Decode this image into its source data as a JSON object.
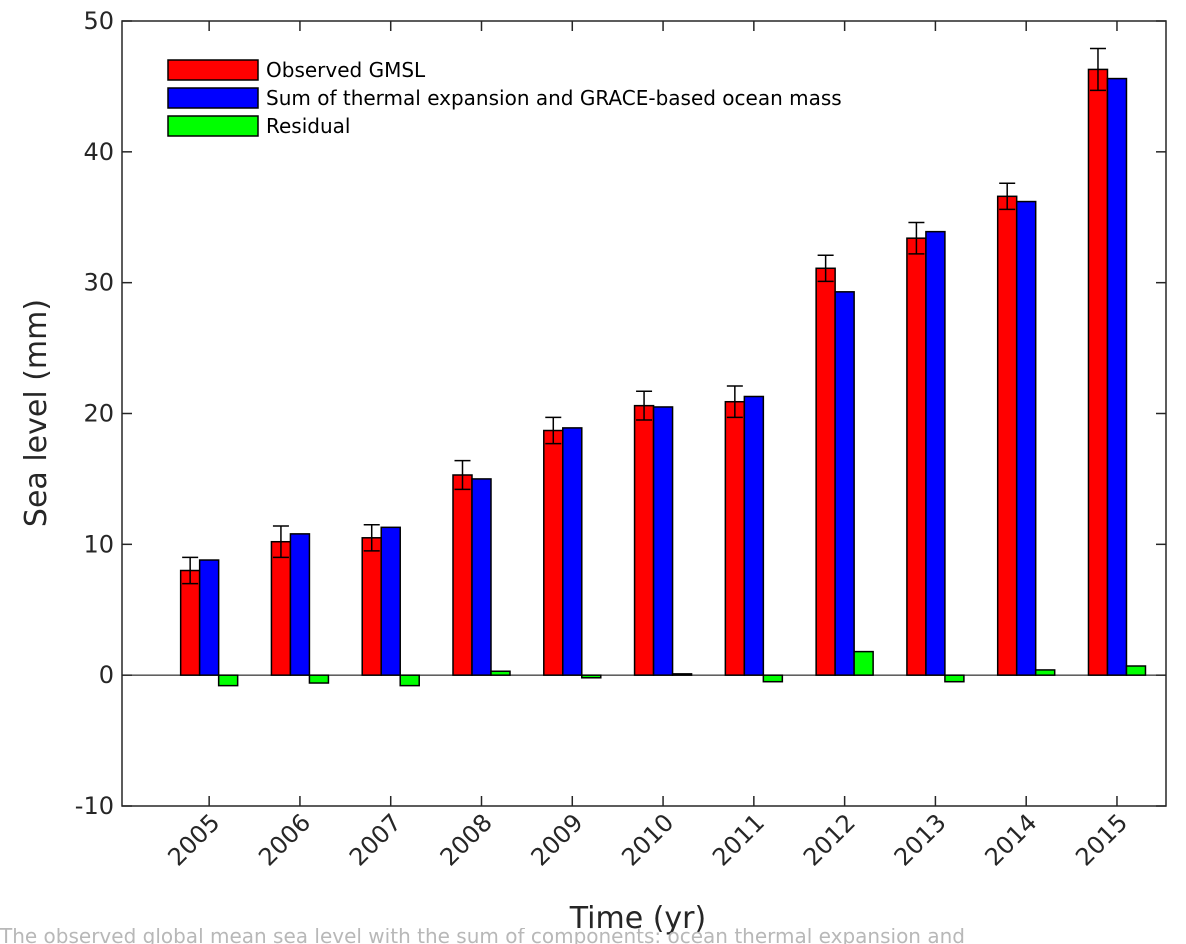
{
  "chart_data": {
    "type": "bar",
    "title": "",
    "xlabel": "Time (yr)",
    "ylabel": "Sea level (mm)",
    "ylim": [
      -10,
      50
    ],
    "yticks": [
      -10,
      0,
      10,
      20,
      30,
      40,
      50
    ],
    "grid": false,
    "legend_position": "top-left",
    "categories": [
      "2005",
      "2006",
      "2007",
      "2008",
      "2009",
      "2010",
      "2011",
      "2012",
      "2013",
      "2014",
      "2015"
    ],
    "series": [
      {
        "name": "Observed GMSL",
        "color": "#ff0000",
        "values": [
          8.0,
          10.2,
          10.5,
          15.3,
          18.7,
          20.6,
          20.9,
          31.1,
          33.4,
          36.6,
          46.3
        ],
        "error": [
          1.0,
          1.2,
          1.0,
          1.1,
          1.0,
          1.1,
          1.2,
          1.0,
          1.2,
          1.0,
          1.6
        ]
      },
      {
        "name": "Sum of thermal expansion and GRACE-based ocean mass",
        "color": "#0000ff",
        "values": [
          8.8,
          10.8,
          11.3,
          15.0,
          18.9,
          20.5,
          21.3,
          29.3,
          33.9,
          36.2,
          45.6
        ]
      },
      {
        "name": "Residual",
        "color": "#00ff00",
        "values": [
          -0.8,
          -0.6,
          -0.8,
          0.3,
          -0.2,
          0.1,
          -0.5,
          1.8,
          -0.5,
          0.4,
          0.7
        ]
      }
    ]
  },
  "caption": "The observed global mean sea level with the sum of components: ocean thermal expansion and"
}
